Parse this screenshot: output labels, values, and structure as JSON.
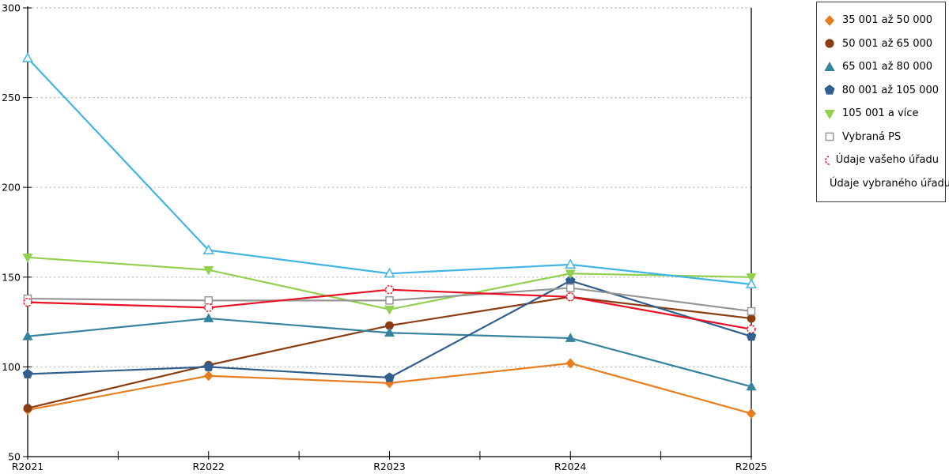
{
  "chart_data": {
    "type": "line",
    "title": "",
    "xlabel": "",
    "ylabel": "",
    "categories": [
      "R2021",
      "R2022",
      "R2023",
      "R2024",
      "R2025"
    ],
    "ylim": [
      50,
      300
    ],
    "ytick_step": 50,
    "grid": "horizontal-dotted",
    "legend_position": "outside-top-right",
    "series": [
      {
        "name": "35 001 až 50 000",
        "color": "#E87D1E",
        "marker": "diamond",
        "fill": "filled",
        "values": [
          76,
          95,
          91,
          102,
          74
        ]
      },
      {
        "name": "50 001 až 65 000",
        "color": "#8B3C10",
        "marker": "circle",
        "fill": "filled",
        "values": [
          77,
          101,
          123,
          139,
          127
        ]
      },
      {
        "name": "65 001 až 80 000",
        "color": "#35839E",
        "marker": "triangle-up",
        "fill": "filled",
        "values": [
          117,
          127,
          119,
          116,
          89
        ]
      },
      {
        "name": "80 001 až 105 000",
        "color": "#305E8E",
        "marker": "pentagon",
        "fill": "filled",
        "values": [
          96,
          100,
          94,
          148,
          117
        ]
      },
      {
        "name": "105 001 a více",
        "color": "#92D050",
        "marker": "triangle-down",
        "fill": "filled",
        "values": [
          161,
          154,
          132,
          152,
          150
        ]
      },
      {
        "name": "Vybraná PS",
        "color": "#969696",
        "marker": "square",
        "fill": "open",
        "values": [
          138,
          137,
          137,
          144,
          131
        ]
      },
      {
        "name": "Údaje vašeho úřadu",
        "color": "#E81123",
        "marker": "circle",
        "fill": "open",
        "values": [
          136,
          133,
          143,
          139,
          121
        ]
      },
      {
        "name": "Údaje vybraného úřadu",
        "color": "#41B4E6",
        "marker": "triangle-up",
        "fill": "open",
        "values": [
          272,
          165,
          152,
          157,
          146
        ]
      }
    ]
  },
  "colors": {
    "background": "#FFFFFF",
    "axis": "#000000",
    "grid": "#B3B3B3",
    "legend_border": "#3F3F3F",
    "tick_label": "#000000"
  }
}
